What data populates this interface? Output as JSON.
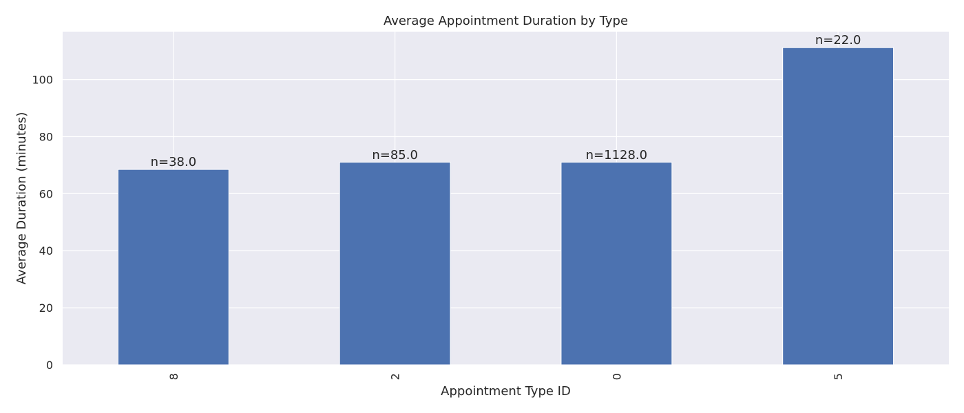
{
  "chart_data": {
    "type": "bar",
    "title": "Average Appointment Duration by Type",
    "xlabel": "Appointment Type ID",
    "ylabel": "Average Duration (minutes)",
    "categories": [
      "8",
      "2",
      "0",
      "5"
    ],
    "values": [
      68.5,
      71.0,
      71.0,
      111.2
    ],
    "bar_labels": [
      "n=38.0",
      "n=85.0",
      "n=1128.0",
      "n=22.0"
    ],
    "ylim": [
      0,
      116.8
    ],
    "yticks": [
      0,
      20,
      40,
      60,
      80,
      100
    ],
    "grid": true,
    "x_tick_rotation": 90,
    "colors": {
      "bar": "#4c72b0",
      "plot_background": "#eaeaf2",
      "grid": "#ffffff",
      "text": "#262626"
    }
  }
}
